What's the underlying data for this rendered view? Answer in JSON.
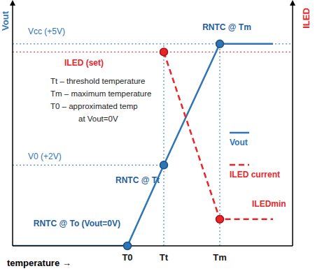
{
  "chart_data": {
    "type": "line",
    "x_label": "temperature →",
    "y_label": "Vout",
    "y2_label": "ILED",
    "xlim": [
      0,
      100
    ],
    "xticks": [
      {
        "value": 41,
        "label": "T0"
      },
      {
        "value": 54,
        "label": "Tt"
      },
      {
        "value": 74,
        "label": "Tm"
      }
    ],
    "ylim": [
      0,
      6
    ],
    "y2lim": [
      0,
      100
    ],
    "tick_labels": "x",
    "legend": "right",
    "series": [
      {
        "name": "Vout",
        "color": "#2e75b6",
        "line_style": "solid",
        "x": [
          0,
          41,
          54,
          74,
          93
        ],
        "values": [
          0,
          0,
          2,
          5,
          5
        ]
      },
      {
        "name": "ILED current",
        "color": "#e8262a",
        "line_style": "dashed",
        "axis": "y2",
        "x": [
          54,
          74,
          93
        ],
        "values": [
          80,
          11,
          11
        ]
      }
    ],
    "points": [
      {
        "x": 41,
        "y": 0,
        "label": "RNTC @ To (Vout=0V)",
        "color": "#2e75b6"
      },
      {
        "x": 54,
        "y": 2,
        "label": "RNTC @ Tt",
        "color": "#2e75b6"
      },
      {
        "x": 74,
        "y": 5,
        "label": "RNTC @ Tm",
        "color": "#2e75b6"
      },
      {
        "x": 54,
        "y": 80,
        "axis": "y2",
        "label": "ILED (set)",
        "color": "#e8262a"
      },
      {
        "x": 74,
        "y": 11,
        "axis": "y2",
        "label": "ILEDmin",
        "color": "#e8262a"
      }
    ],
    "guides": [
      {
        "axis": "y",
        "value": 5,
        "x": [
          0,
          100
        ],
        "label": "Vcc (+5V)",
        "color": "#2e75b6"
      },
      {
        "axis": "y",
        "value": 2,
        "x": [
          0,
          54
        ],
        "label": "V0 (+2V)",
        "color": "#2e75b6"
      },
      {
        "axis": "y2",
        "value": 80,
        "x": [
          0,
          100
        ],
        "color": "#e8262a"
      }
    ],
    "vguides": [
      {
        "x": 54,
        "y": [
          0,
          5
        ],
        "color": "#2e75b6"
      },
      {
        "x": 74,
        "y": [
          0,
          5
        ],
        "color": "#2e75b6"
      }
    ],
    "notes": [
      "Tt – threshold temperature",
      "Tm – maximum temperature",
      "T0 – approximated temp",
      "at Vout=0V"
    ]
  }
}
